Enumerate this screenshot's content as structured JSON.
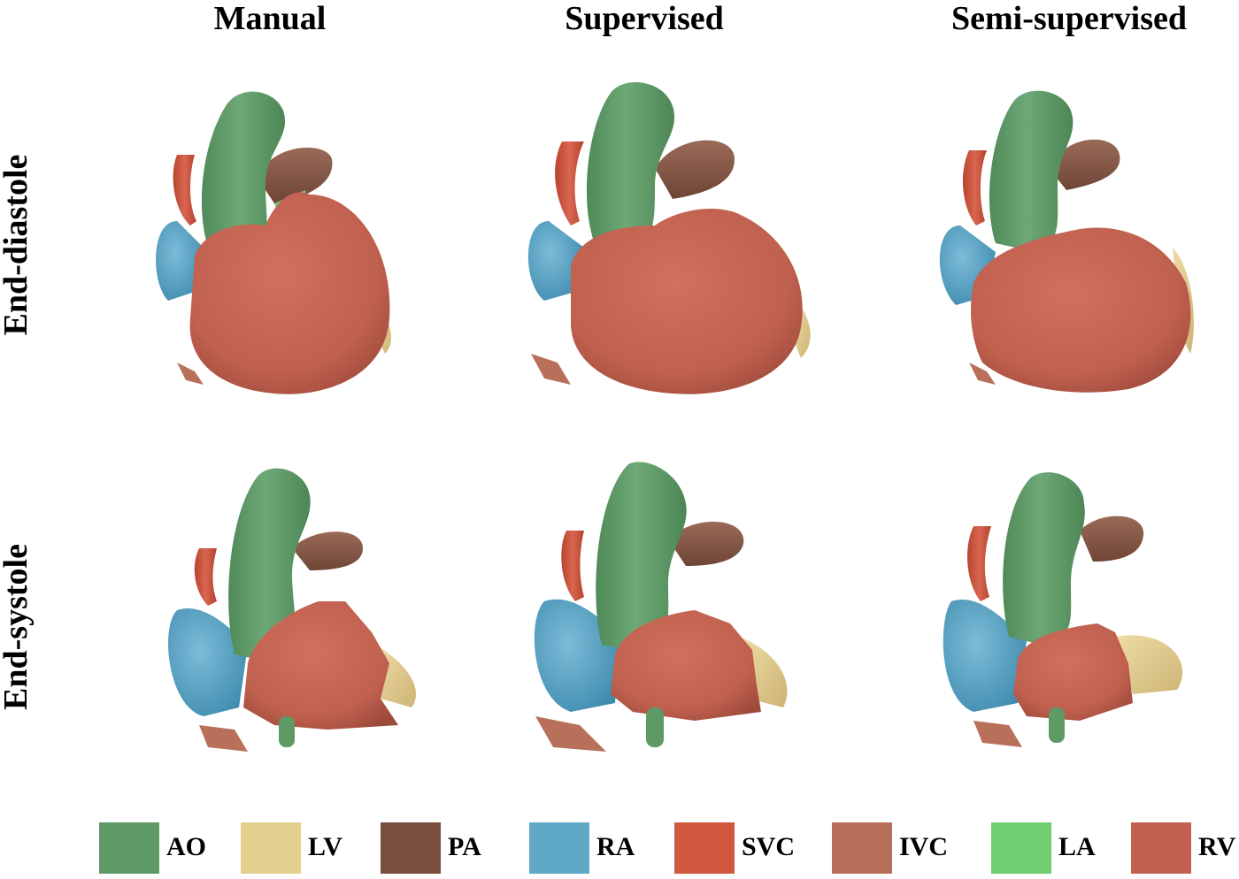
{
  "column_titles": [
    "Manual",
    "Supervised",
    "Semi-supervised"
  ],
  "row_titles": [
    "End-diastole",
    "End-systole"
  ],
  "structure_colors": {
    "AO": "#5e9a66",
    "LV": "#e3cf8e",
    "PA": "#8a5846",
    "RA": "#5aa6c6",
    "SVC": "#cc5541",
    "IVC": "#b8705a",
    "LA": "#72cd74",
    "RV": "#c4604f"
  },
  "legend": [
    {
      "label": "AO",
      "color": "#5e9a66"
    },
    {
      "label": "LV",
      "color": "#e3cf8e"
    },
    {
      "label": "PA",
      "color": "#7a4e3e"
    },
    {
      "label": "RA",
      "color": "#5fa8c8"
    },
    {
      "label": "SVC",
      "color": "#d0583f"
    },
    {
      "label": "IVC",
      "color": "#b8705a"
    },
    {
      "label": "LA",
      "color": "#6fcf72"
    },
    {
      "label": "RV",
      "color": "#c4604f"
    }
  ]
}
